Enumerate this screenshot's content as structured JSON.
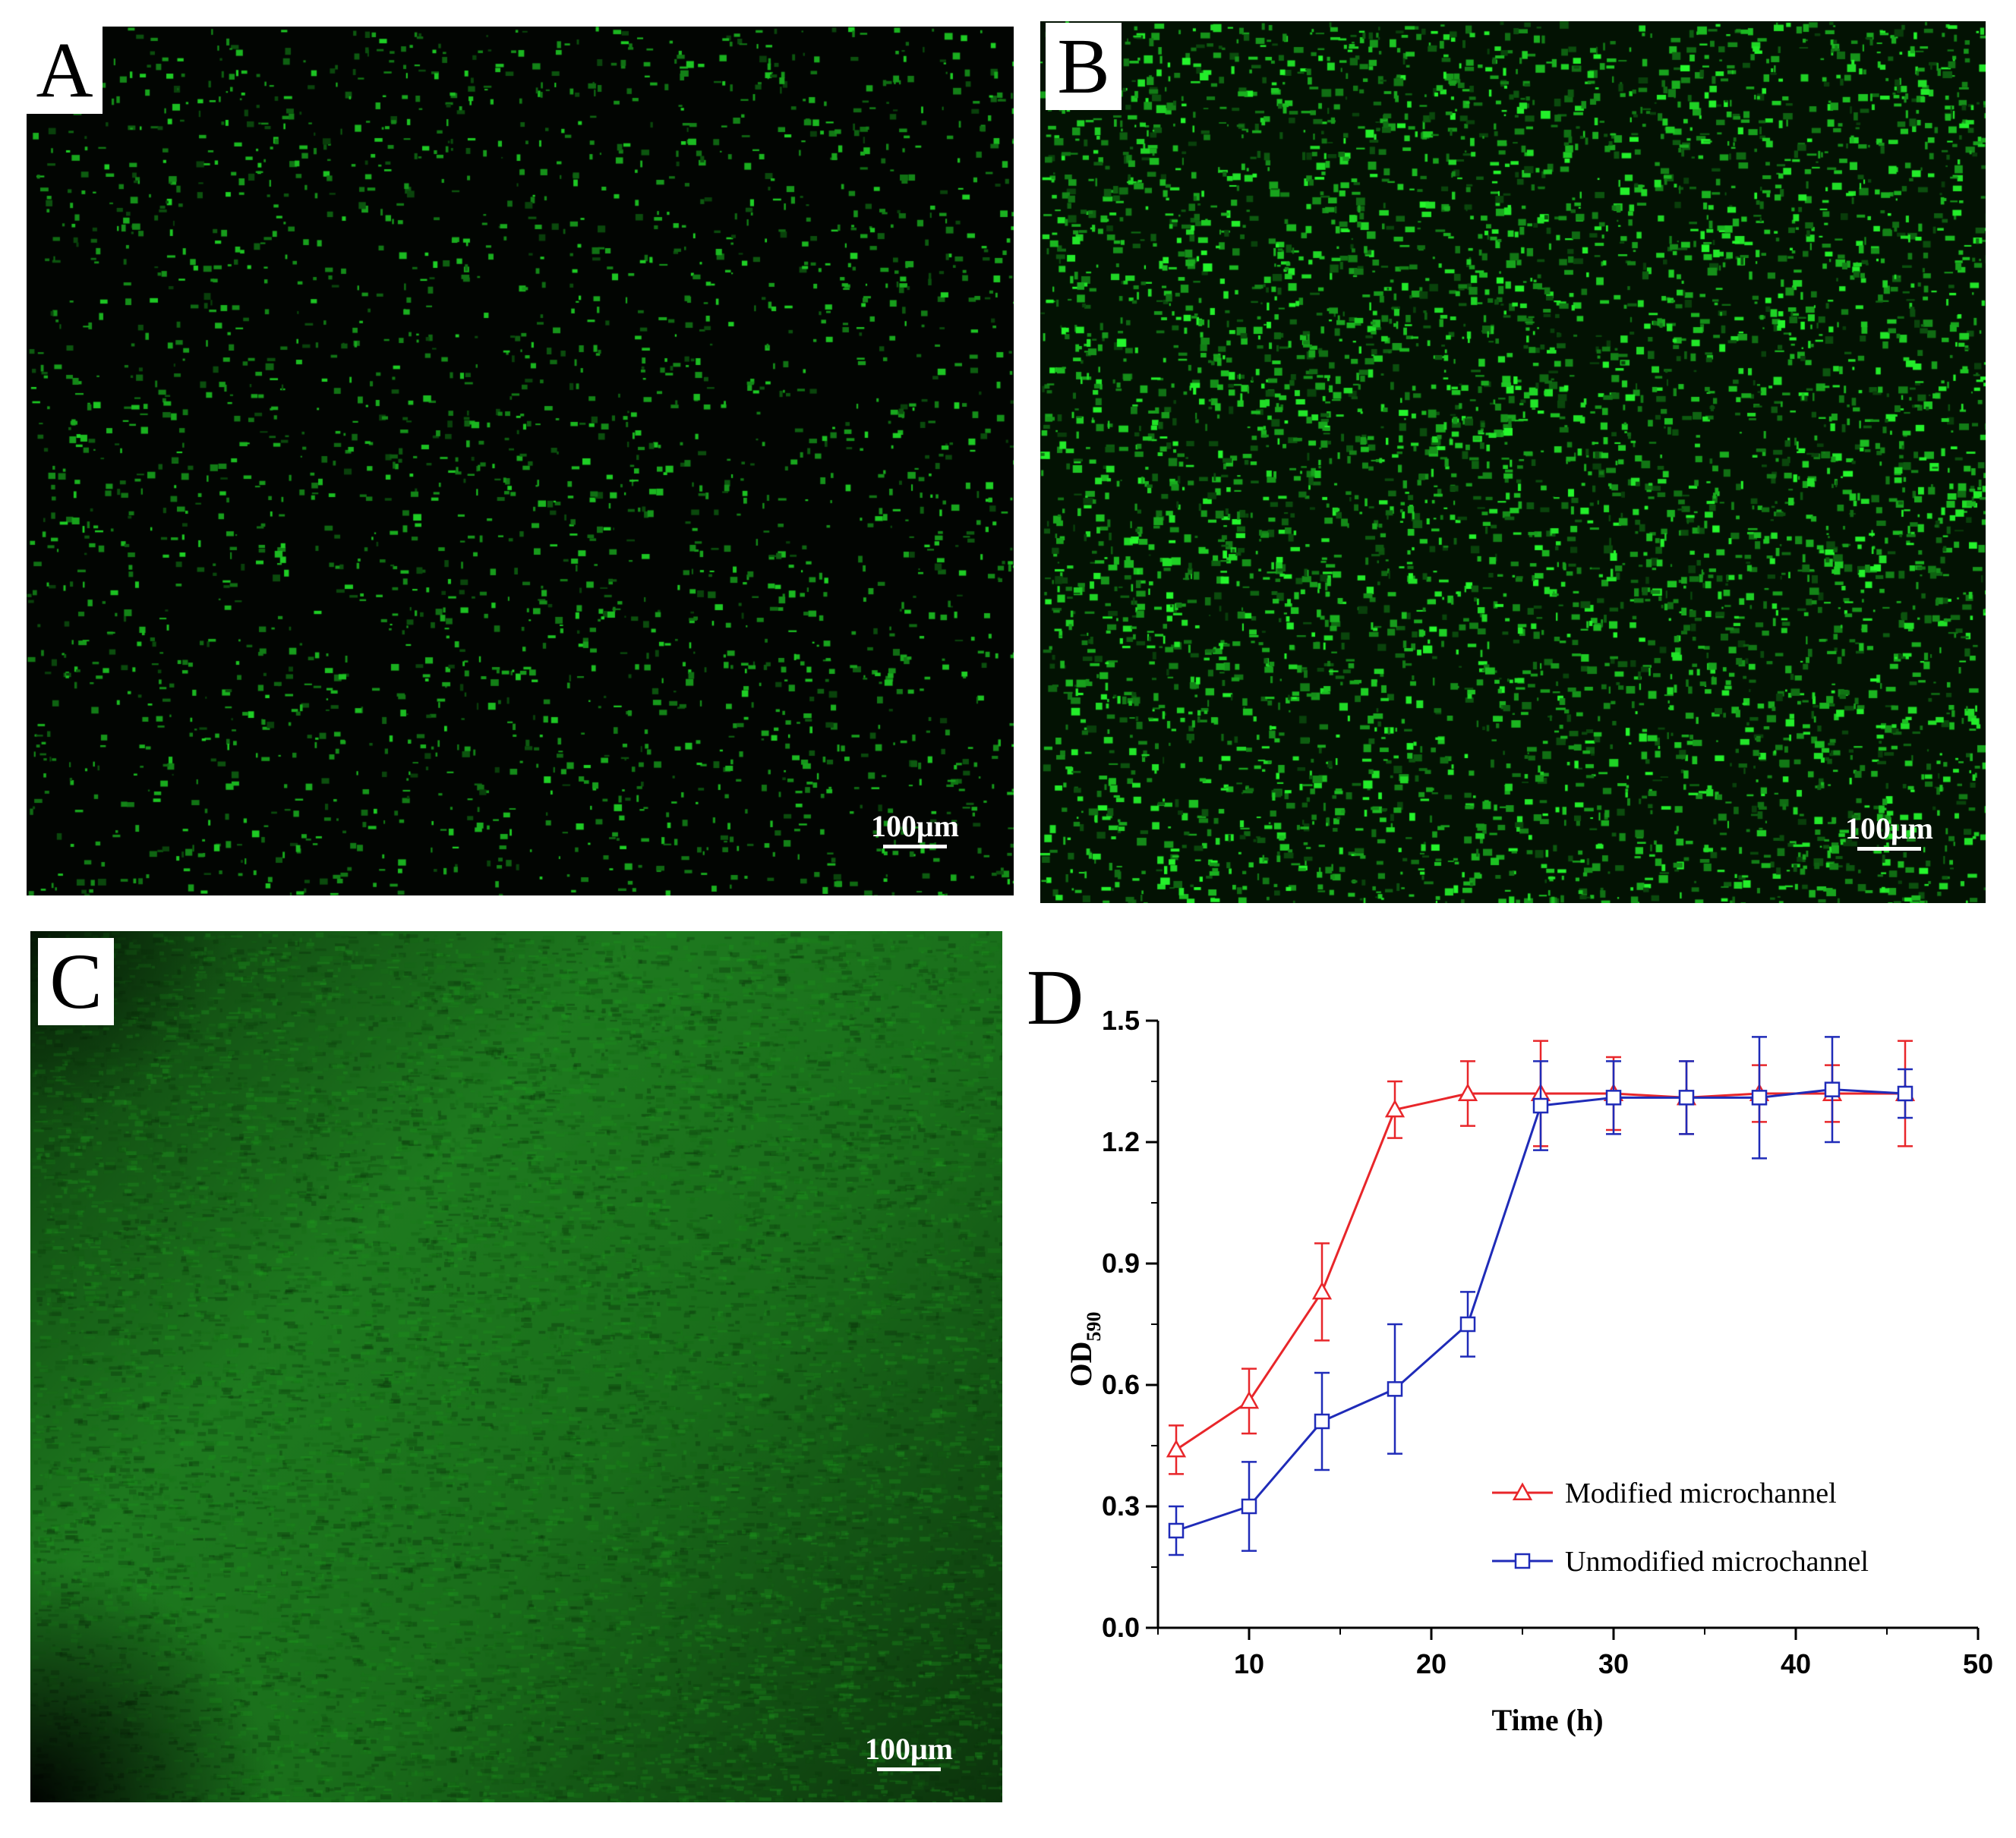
{
  "panels": {
    "a": {
      "letter": "A",
      "scale_label": "100μm"
    },
    "b": {
      "letter": "B",
      "scale_label": "100μm"
    },
    "c": {
      "letter": "C",
      "scale_label": "100μm"
    },
    "d": {
      "letter": "D"
    }
  },
  "colors": {
    "modified": "#e8262a",
    "unmodified": "#1f2bb8",
    "axis": "#000000",
    "fluorescence": "#22c02a"
  },
  "chart_data": {
    "type": "line",
    "xlabel": "Time (h)",
    "ylabel_main": "OD",
    "ylabel_sub": "590",
    "xlim": [
      5,
      50
    ],
    "ylim": [
      0.0,
      1.5
    ],
    "xticks": [
      "10",
      "20",
      "30",
      "40",
      "50"
    ],
    "yticks": [
      "0.0",
      "0.3",
      "0.6",
      "0.9",
      "1.2",
      "1.5"
    ],
    "x": [
      6,
      10,
      14,
      18,
      22,
      26,
      30,
      34,
      38,
      42,
      46
    ],
    "series": [
      {
        "name": "Modified microchannel",
        "marker": "triangle",
        "values": [
          0.44,
          0.56,
          0.83,
          1.28,
          1.32,
          1.32,
          1.32,
          1.31,
          1.32,
          1.32,
          1.32
        ],
        "errors": [
          0.06,
          0.08,
          0.12,
          0.07,
          0.08,
          0.13,
          0.09,
          0.09,
          0.07,
          0.07,
          0.13
        ]
      },
      {
        "name": "Unmodified microchannel",
        "marker": "square",
        "values": [
          0.24,
          0.3,
          0.51,
          0.59,
          0.75,
          1.29,
          1.31,
          1.31,
          1.31,
          1.33,
          1.32
        ],
        "errors": [
          0.06,
          0.11,
          0.12,
          0.16,
          0.08,
          0.11,
          0.09,
          0.09,
          0.15,
          0.13,
          0.06
        ]
      }
    ],
    "legend_position": "lower-right"
  }
}
